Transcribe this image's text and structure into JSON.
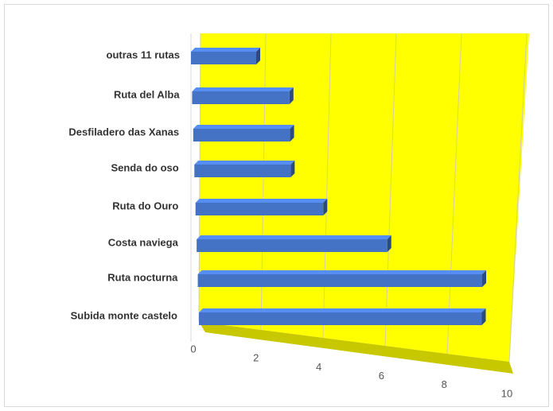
{
  "chart_data": {
    "type": "bar3d",
    "categories": [
      "outras 11 rutas",
      "Ruta del Alba",
      "Desfiladero das Xanas",
      "Senda do oso",
      "Ruta do Ouro",
      "Costa naviega",
      "Ruta nocturna",
      "Subida monte castelo"
    ],
    "values": [
      2,
      3,
      3,
      3,
      4,
      6,
      9,
      9
    ],
    "color": "#4472c4",
    "xlim": [
      0,
      10
    ],
    "xticks": [
      0,
      2,
      4,
      6,
      8,
      10
    ],
    "grid": true
  }
}
